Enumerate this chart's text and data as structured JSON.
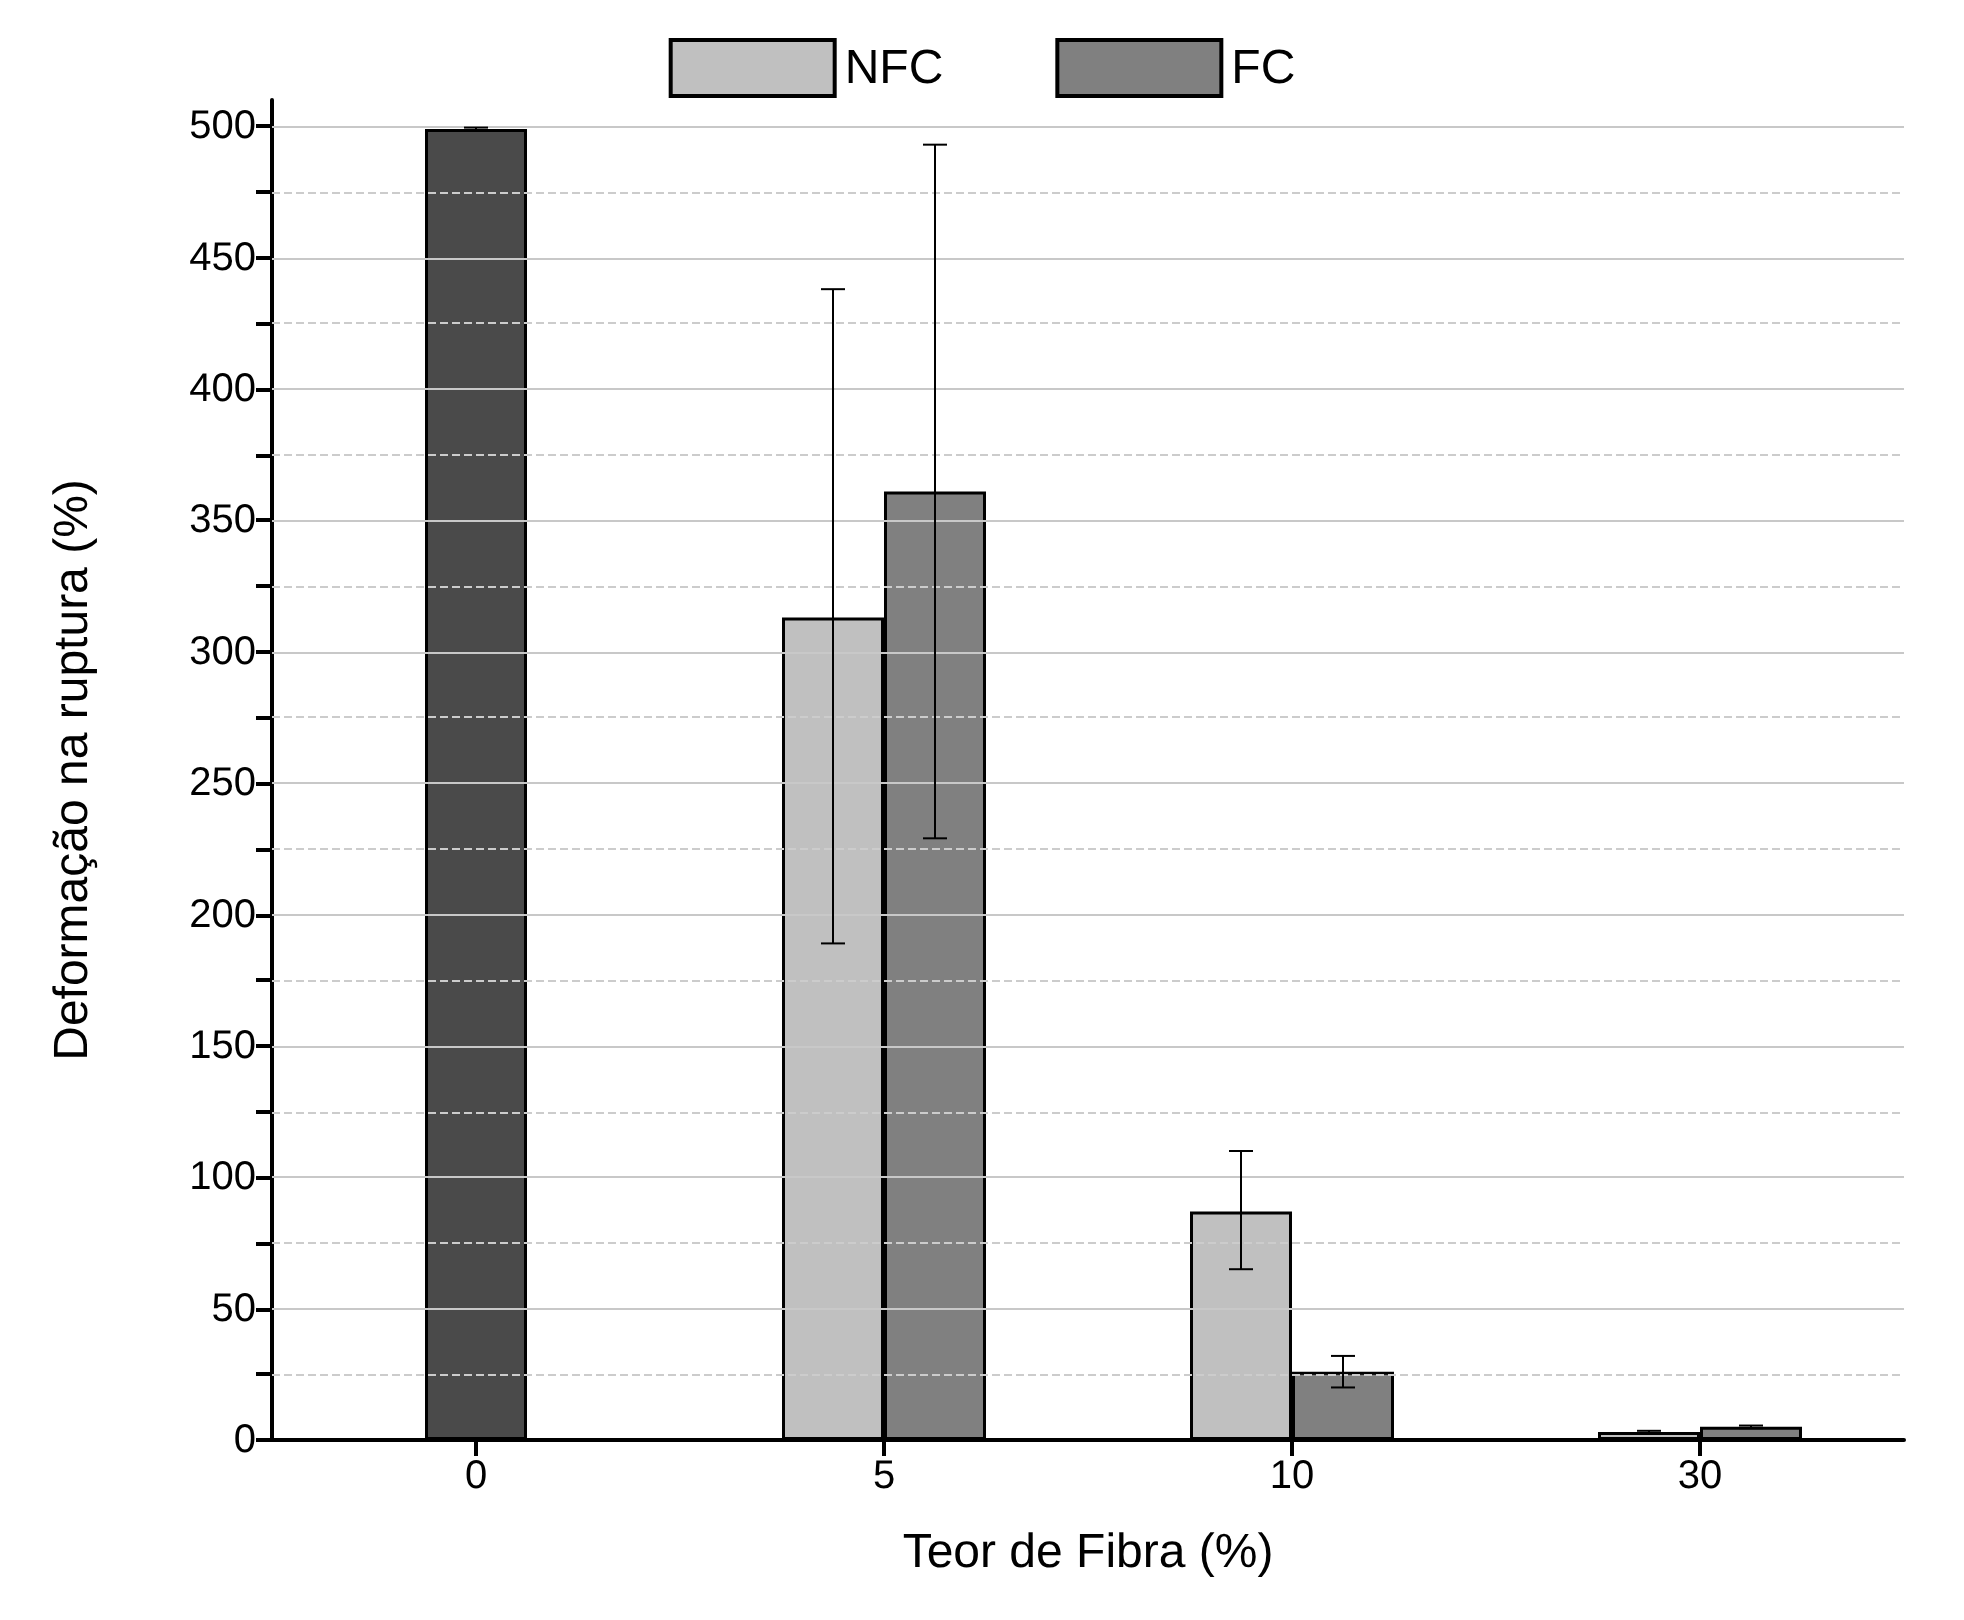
{
  "chart_data": {
    "type": "bar",
    "xlabel": "Teor de Fibra (%)",
    "ylabel": "Deformação na ruptura (%)",
    "categories": [
      "0",
      "5",
      "10",
      "30"
    ],
    "series": [
      {
        "color": "#4a4a4a",
        "values": [
          499,
          null,
          null,
          null
        ],
        "errors": [
          0.5,
          null,
          null,
          null
        ]
      },
      {
        "name": "NFC",
        "color": "#c0c0c0",
        "values": [
          null,
          313,
          87,
          3
        ],
        "errors": [
          null,
          [
            189,
            438
          ],
          [
            65,
            110
          ],
          0.5
        ]
      },
      {
        "name": "FC",
        "color": "#808080",
        "values": [
          null,
          361,
          26,
          5
        ],
        "errors": [
          null,
          [
            229,
            493
          ],
          [
            20,
            32
          ],
          0.5
        ]
      }
    ],
    "ylim": [
      0,
      510
    ],
    "yticks": [
      0,
      {
        "value": 25,
        "label": null
      },
      50,
      {
        "value": 75,
        "label": null
      },
      100,
      {
        "value": 125,
        "label": null
      },
      150,
      {
        "value": 175,
        "label": null
      },
      200,
      {
        "value": 225,
        "label": null
      },
      250,
      {
        "value": 275,
        "label": null
      },
      300,
      {
        "value": 325,
        "label": null
      },
      350,
      {
        "value": 375,
        "label": null
      },
      400,
      {
        "value": 425,
        "label": null
      },
      450,
      {
        "value": 475,
        "label": null
      },
      500
    ],
    "grid": "y",
    "legend": "top"
  }
}
